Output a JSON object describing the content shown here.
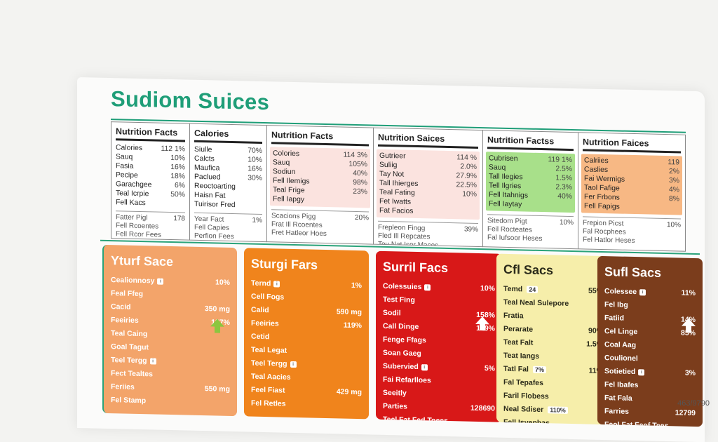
{
  "title": "Sudiom Suices",
  "colors": {
    "title": "#1f9e78",
    "red_panel_tint": "#fbe3df",
    "green_panel_tint": "#a8e08a",
    "orange_panel_tint": "#f7b884",
    "card_peach": "#f3a46a",
    "card_orange": "#f0841c",
    "card_red": "#d81818",
    "card_yellow": "#f6eeaa",
    "card_brown": "#7b3d1c"
  },
  "panels": [
    {
      "header": "Nutrition Facts",
      "rows": [
        {
          "label": "Calories",
          "value": "112 1%"
        },
        {
          "label": "Sauq",
          "value": "10%"
        },
        {
          "label": "Fasia",
          "value": "16%"
        },
        {
          "label": "Pecipe",
          "value": "18%"
        },
        {
          "label": "Garachgee",
          "value": "6%"
        },
        {
          "label": "Teal Icrpie",
          "value": "50%"
        },
        {
          "label": "Fell Kacs",
          "value": ""
        }
      ],
      "footer": [
        {
          "label": "Fatter Pigl",
          "value": "178"
        },
        {
          "label": "Fell Rcoentes",
          "value": ""
        },
        {
          "label": "Fell Rcor Fees",
          "value": ""
        }
      ]
    },
    {
      "header": "Calories",
      "rows": [
        {
          "label": "Siulle",
          "value": "70%"
        },
        {
          "label": "Calcts",
          "value": "10%"
        },
        {
          "label": "Maufica",
          "value": "16%"
        },
        {
          "label": "Paclued",
          "value": "30%"
        },
        {
          "label": "Reoctoarting",
          "value": ""
        },
        {
          "label": "Haisn Fat",
          "value": ""
        },
        {
          "label": "Tuirisor Fred",
          "value": ""
        }
      ],
      "footer": [
        {
          "label": "Year Fact",
          "value": "1%"
        },
        {
          "label": "Fell Capies",
          "value": ""
        },
        {
          "label": "Perfion Fees",
          "value": ""
        }
      ]
    },
    {
      "header": "Nutrition Facts",
      "rows": [
        {
          "label": "Colories",
          "value": "114 3%"
        },
        {
          "label": "Sauq",
          "value": "105%"
        },
        {
          "label": "Sodiun",
          "value": "40%"
        },
        {
          "label": "Fell Ilemigs",
          "value": "98%"
        },
        {
          "label": "Teal Frige",
          "value": "23%"
        },
        {
          "label": "Fell Iapgy",
          "value": ""
        }
      ],
      "footer": [
        {
          "label": "Scacions Pigg",
          "value": "20%"
        },
        {
          "label": "Frat Ill Rcoentes",
          "value": ""
        },
        {
          "label": "Fret Hatleor Hoes",
          "value": ""
        }
      ]
    },
    {
      "header": "Nutrition Saices",
      "rows": [
        {
          "label": "Gutrieer",
          "value": "114 %"
        },
        {
          "label": "Suliig",
          "value": "2.0%"
        },
        {
          "label": "Tay Not",
          "value": "27.9%"
        },
        {
          "label": "Tall Ihierges",
          "value": "22.5%"
        },
        {
          "label": "Teal Fating",
          "value": "10%"
        },
        {
          "label": "Fet Iwatts",
          "value": ""
        },
        {
          "label": "Fat Facios",
          "value": ""
        }
      ],
      "footer": [
        {
          "label": "Frepleon Fingg",
          "value": "39%"
        },
        {
          "label": "Fled Ill Repcates",
          "value": ""
        },
        {
          "label": "Tou Nat Isor Maces",
          "value": ""
        }
      ]
    },
    {
      "header": "Nutrition Factss",
      "rows": [
        {
          "label": "Cubrisen",
          "value": "119 1%"
        },
        {
          "label": "Sauq",
          "value": "2.5%"
        },
        {
          "label": "Tall Ilegies",
          "value": "1.5%"
        },
        {
          "label": "Tell Ilgries",
          "value": "2.3%"
        },
        {
          "label": "Fell Itahnigs",
          "value": "40%"
        },
        {
          "label": "Fell Iaytay",
          "value": ""
        }
      ],
      "footer": [
        {
          "label": "Sitedom Pigt",
          "value": "10%"
        },
        {
          "label": "Feil Rocteates",
          "value": ""
        },
        {
          "label": "Fal Iufsoor Heses",
          "value": ""
        }
      ]
    },
    {
      "header": "Nutrition Faices",
      "rows": [
        {
          "label": "Calriies",
          "value": "119"
        },
        {
          "label": "Caslies",
          "value": "2%"
        },
        {
          "label": "Fai Wermigs",
          "value": "3%"
        },
        {
          "label": "Taol Fafige",
          "value": "4%"
        },
        {
          "label": "Fer Frbons",
          "value": "8%"
        },
        {
          "label": "Fell Fapigs",
          "value": ""
        }
      ],
      "footer": [
        {
          "label": "Frepion Picst",
          "value": "10%"
        },
        {
          "label": "Fal Rocphees",
          "value": ""
        },
        {
          "label": "Fel Hatlor Heses",
          "value": ""
        }
      ]
    }
  ],
  "cards": [
    {
      "title": "Yturf Sace",
      "rows": [
        {
          "label": "Cealionnosy",
          "value": "10%",
          "badge": true
        },
        {
          "label": "Feal Ffeg",
          "value": ""
        },
        {
          "label": "Cacid",
          "value": "350 mg"
        },
        {
          "label": "Feeiries",
          "value": "127%"
        },
        {
          "label": "Teal Caing",
          "value": ""
        },
        {
          "label": "Goal Tagut",
          "value": ""
        },
        {
          "label": "Teel Tergg",
          "value": "",
          "badge": true
        },
        {
          "label": "Fect Tealtes",
          "value": ""
        },
        {
          "label": "Feriies",
          "value": "550 mg"
        },
        {
          "label": "Fel Stamp",
          "value": ""
        }
      ]
    },
    {
      "title": "Sturgi Fars",
      "rows": [
        {
          "label": "Ternd",
          "value": "1%",
          "badge": true
        },
        {
          "label": "Cell Fogs",
          "value": ""
        },
        {
          "label": "Calid",
          "value": "590 mg"
        },
        {
          "label": "Feeiries",
          "value": "119%"
        },
        {
          "label": "Cetid",
          "value": ""
        },
        {
          "label": "Teal Legat",
          "value": ""
        },
        {
          "label": "Teel Tergg",
          "value": "",
          "badge": true
        },
        {
          "label": "Teal Aacies",
          "value": ""
        },
        {
          "label": "Feel Fiast",
          "value": "429 mg"
        },
        {
          "label": "Fel Retles",
          "value": ""
        }
      ]
    },
    {
      "title": "Surril Facs",
      "rows": [
        {
          "label": "Colessuies",
          "value": "10%",
          "badge": true
        },
        {
          "label": "Test Fing",
          "value": ""
        },
        {
          "label": "Sodil",
          "value": "158%"
        },
        {
          "label": "Call Dinge",
          "value": "149%"
        },
        {
          "label": "Fenge Ffags",
          "value": ""
        },
        {
          "label": "Soan Gaeg",
          "value": ""
        },
        {
          "label": "Subervied",
          "value": "5%",
          "badge": true
        },
        {
          "label": "Fai Refarlloes",
          "value": ""
        },
        {
          "label": "Seeitly",
          "value": ""
        },
        {
          "label": "Parties",
          "value": "128690"
        },
        {
          "label": "Teel Fat Fed Toees",
          "value": ""
        }
      ]
    },
    {
      "title": "Cfl Sacs",
      "rows": [
        {
          "label": "Temd",
          "value": "55%",
          "box": "24"
        },
        {
          "label": "Teal Neal Sulepore",
          "value": ""
        },
        {
          "label": "Fratia",
          "value": ""
        },
        {
          "label": "Perarate",
          "value": "90%"
        },
        {
          "label": "Teat Falt",
          "value": "1.5%"
        },
        {
          "label": "Teat Iangs",
          "value": ""
        },
        {
          "label": "Tatl Fal",
          "value": "11%",
          "box": "7%"
        },
        {
          "label": "Fal Tepafes",
          "value": ""
        },
        {
          "label": "Faril Flobess",
          "value": ""
        },
        {
          "label": "Neal Sdiser",
          "value": "",
          "box": "110%"
        },
        {
          "label": "Fell Isyepbas",
          "value": ""
        }
      ]
    },
    {
      "title": "Sufl Sacs",
      "rows": [
        {
          "label": "Colessee",
          "value": "11%",
          "badge": true
        },
        {
          "label": "Fel Ibg",
          "value": ""
        },
        {
          "label": "Fatiid",
          "value": "14%"
        },
        {
          "label": "Cel Linge",
          "value": "85%"
        },
        {
          "label": "Coal Aag",
          "value": ""
        },
        {
          "label": "Coulionel",
          "value": ""
        },
        {
          "label": "Sotietied",
          "value": "3%",
          "badge": true
        },
        {
          "label": "Fel Ibafes",
          "value": ""
        },
        {
          "label": "Fat Fala",
          "value": ""
        },
        {
          "label": "Farries",
          "value": "12799"
        },
        {
          "label": "Feol Fat Feof Tees",
          "value": ""
        }
      ]
    }
  ],
  "watermark": "463/9790"
}
